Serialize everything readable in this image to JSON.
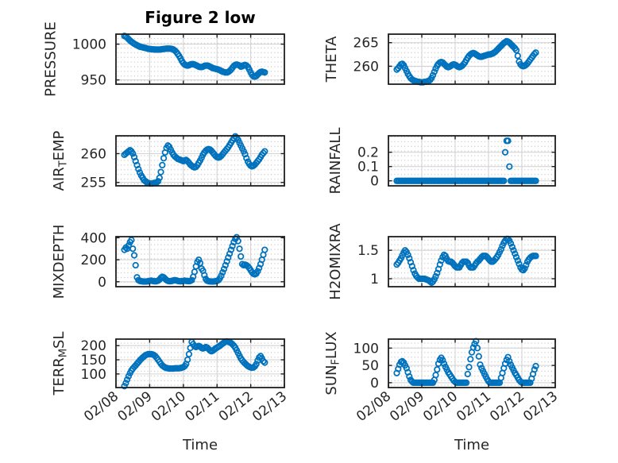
{
  "figure": {
    "title": "Figure 2 low",
    "xlabel": "Time",
    "background_color": "#ffffff",
    "marker_color": "#0072BD",
    "axis_color": "#1f1f1f",
    "text_color": "#262626",
    "grid_major_color": "#d4d4d4",
    "grid_minor_dot_color": "#c3c3c3",
    "grid_rows": 4,
    "grid_cols": 2
  },
  "x_axis": {
    "label": "Time",
    "tick_labels": [
      "02/08",
      "02/09",
      "02/10",
      "02/11",
      "02/12",
      "02/13"
    ],
    "span_hours": 120
  },
  "chart_data": [
    {
      "key": "pressure",
      "type": "scatter",
      "marker": "circle",
      "ylabel": "PRESSURE",
      "ylabel_parts": [
        {
          "t": "PRESSURE"
        }
      ],
      "yticks": [
        950,
        1000
      ],
      "ylim": [
        944,
        1014
      ],
      "x_start_hour": 6,
      "x_step_hours": 1,
      "values": [
        1011.5,
        1010.5,
        1009,
        1007,
        1005,
        1003.5,
        1002,
        1000.5,
        999.5,
        998.5,
        997.5,
        996.5,
        996,
        995.5,
        995,
        994.5,
        994,
        993.5,
        993.2,
        993,
        992.8,
        992.6,
        992.5,
        992.4,
        992.4,
        992.5,
        992.7,
        993,
        993.2,
        993.5,
        993.7,
        993.8,
        993.8,
        993.6,
        993.2,
        992.5,
        991,
        989,
        986.5,
        983.5,
        980,
        976.5,
        973.5,
        971.5,
        970.5,
        970,
        970.5,
        971.5,
        972,
        972,
        971.5,
        970.5,
        969.5,
        968.5,
        968,
        968,
        968.5,
        969.5,
        970,
        970,
        969.5,
        968.5,
        967.5,
        966.5,
        966,
        965.5,
        965,
        964.5,
        963.5,
        962.5,
        961.5,
        961,
        960.5,
        960.5,
        961,
        962.5,
        964.5,
        967,
        969.5,
        971,
        971.5,
        971,
        970,
        968.5,
        969,
        970.5,
        971,
        970,
        968,
        964.5,
        960.5,
        957,
        955,
        954.5,
        955.5,
        957.5,
        959.5,
        961,
        961.5,
        961,
        960.5
      ]
    },
    {
      "key": "theta",
      "type": "scatter",
      "marker": "circle",
      "ylabel": "THETA",
      "ylabel_parts": [
        {
          "t": "THETA"
        }
      ],
      "yticks": [
        260,
        265
      ],
      "ylim": [
        256.2,
        266.8
      ],
      "x_start_hour": 6,
      "x_step_hours": 1,
      "values": [
        259.3,
        259.6,
        260,
        260.4,
        260.5,
        260.2,
        259.6,
        259,
        258.4,
        257.9,
        257.5,
        257.2,
        257,
        256.9,
        256.8,
        256.7,
        256.7,
        256.6,
        256.6,
        256.6,
        256.7,
        256.7,
        256.8,
        256.9,
        257.1,
        257.5,
        258.1,
        258.8,
        259.5,
        260.1,
        260.5,
        260.8,
        260.9,
        260.8,
        260.5,
        260.2,
        259.9,
        259.8,
        259.9,
        260.1,
        260.3,
        260.4,
        260.3,
        260.1,
        259.9,
        259.8,
        259.9,
        260.1,
        260.4,
        260.8,
        261.3,
        261.8,
        262.2,
        262.5,
        262.7,
        262.8,
        262.7,
        262.5,
        262.3,
        262.1,
        262,
        262,
        262.1,
        262.2,
        262.3,
        262.4,
        262.5,
        262.5,
        262.6,
        262.7,
        262.9,
        263.1,
        263.4,
        263.7,
        264,
        264.3,
        264.6,
        264.9,
        265.1,
        265.3,
        265.2,
        265,
        264.7,
        264.4,
        264.1,
        263.8,
        263.4,
        262.2,
        261,
        260.4,
        260.1,
        260,
        260.1,
        260.3,
        260.6,
        261,
        261.4,
        261.8,
        262.2,
        262.6,
        262.9
      ]
    },
    {
      "key": "airtemp",
      "type": "scatter",
      "marker": "circle",
      "ylabel": "AIR_TEMP",
      "ylabel_parts": [
        {
          "t": "AIR"
        },
        {
          "t": "T",
          "sub": true
        },
        {
          "t": "EMP"
        }
      ],
      "yticks": [
        255,
        260
      ],
      "ylim": [
        254.4,
        263.1
      ],
      "x_start_hour": 6,
      "x_step_hours": 1,
      "values": [
        259.8,
        260,
        260.2,
        260.4,
        260.6,
        260.4,
        260,
        259.4,
        258.7,
        258,
        257.3,
        256.7,
        256.2,
        255.8,
        255.4,
        255.2,
        255,
        254.9,
        254.8,
        254.8,
        254.8,
        254.9,
        254.9,
        255,
        255.2,
        255.8,
        256.8,
        258,
        259.2,
        260.2,
        261,
        261.4,
        261.2,
        260.7,
        260.2,
        259.8,
        259.5,
        259.3,
        259.1,
        259,
        258.9,
        258.8,
        258.7,
        258.8,
        258.9,
        258.7,
        258.4,
        258.1,
        257.9,
        257.7,
        257.6,
        257.7,
        258,
        258.4,
        258.8,
        259.3,
        259.8,
        260.2,
        260.5,
        260.7,
        260.8,
        260.7,
        260.5,
        260.2,
        259.9,
        259.6,
        259.4,
        259.3,
        259.4,
        259.6,
        259.9,
        260.2,
        260.5,
        260.8,
        261.1,
        261.5,
        261.9,
        262.3,
        262.7,
        263,
        262.8,
        262.4,
        261.9,
        261.4,
        260.9,
        260.4,
        259.9,
        259.2,
        258.6,
        258.2,
        257.9,
        257.8,
        257.9,
        258.1,
        258.4,
        258.7,
        259,
        259.4,
        259.8,
        260.1,
        260.4
      ]
    },
    {
      "key": "rainfall",
      "type": "scatter",
      "marker": "circle",
      "ylabel": "RAINFALL",
      "ylabel_parts": [
        {
          "t": "RAINFALL"
        }
      ],
      "yticks": [
        0,
        0.1,
        0.2
      ],
      "ylim": [
        -0.035,
        0.315
      ],
      "x_start_hour": 6,
      "x_step_hours": 1,
      "values": [
        0,
        0,
        0,
        0,
        0,
        0,
        0,
        0,
        0,
        0,
        0,
        0,
        0,
        0,
        0,
        0,
        0,
        0,
        0,
        0,
        0,
        0,
        0,
        0,
        0,
        0,
        0,
        0,
        0,
        0,
        0,
        0,
        0,
        0,
        0,
        0,
        0,
        0,
        0,
        0,
        0,
        0,
        0,
        0,
        0,
        0,
        0,
        0,
        0,
        0,
        0,
        0,
        0,
        0,
        0,
        0,
        0,
        0,
        0,
        0,
        0,
        0,
        0,
        0,
        0,
        0,
        0,
        0,
        0,
        0,
        0,
        0,
        0,
        0,
        0,
        0,
        0,
        0,
        0.2,
        0.28,
        0.28,
        0.1,
        0,
        0,
        0,
        0,
        0,
        0,
        0,
        0,
        0,
        0,
        0,
        0,
        0,
        0,
        0,
        0,
        0,
        0,
        0
      ]
    },
    {
      "key": "mixdepth",
      "type": "scatter",
      "marker": "circle",
      "ylabel": "MIXDEPTH",
      "ylabel_parts": [
        {
          "t": "MIXDEPTH"
        }
      ],
      "yticks": [
        0,
        200,
        400
      ],
      "ylim": [
        -45,
        410
      ],
      "x_start_hour": 6,
      "x_step_hours": 1,
      "values": [
        290,
        310,
        300,
        330,
        360,
        380,
        300,
        240,
        150,
        40,
        15,
        8,
        5,
        3,
        2,
        2,
        3,
        5,
        8,
        10,
        8,
        5,
        4,
        5,
        10,
        20,
        35,
        45,
        40,
        28,
        15,
        8,
        5,
        5,
        8,
        12,
        15,
        12,
        8,
        5,
        4,
        5,
        8,
        10,
        8,
        6,
        5,
        8,
        15,
        45,
        90,
        140,
        180,
        200,
        170,
        120,
        100,
        60,
        25,
        10,
        5,
        3,
        2,
        2,
        3,
        5,
        8,
        15,
        30,
        55,
        85,
        115,
        150,
        185,
        220,
        255,
        290,
        325,
        360,
        390,
        405,
        370,
        300,
        230,
        160,
        150,
        155,
        150,
        140,
        125,
        105,
        85,
        72,
        68,
        75,
        95,
        125,
        160,
        200,
        245,
        290
      ]
    },
    {
      "key": "h2omixra",
      "type": "scatter",
      "marker": "circle",
      "ylabel": "H2OMIXRA",
      "ylabel_parts": [
        {
          "t": "H2OMIXRA"
        }
      ],
      "yticks": [
        1,
        1.5
      ],
      "ylim": [
        0.86,
        1.74
      ],
      "x_start_hour": 6,
      "x_step_hours": 1,
      "values": [
        1.25,
        1.28,
        1.32,
        1.36,
        1.41,
        1.46,
        1.5,
        1.47,
        1.42,
        1.36,
        1.29,
        1.22,
        1.15,
        1.09,
        1.05,
        1.02,
        1,
        1,
        1,
        1,
        1,
        0.99,
        0.98,
        0.97,
        0.95,
        0.93,
        0.95,
        0.99,
        1.04,
        1.1,
        1.17,
        1.25,
        1.32,
        1.38,
        1.42,
        1.4,
        1.35,
        1.31,
        1.3,
        1.3,
        1.28,
        1.25,
        1.22,
        1.2,
        1.2,
        1.2,
        1.24,
        1.28,
        1.3,
        1.3,
        1.3,
        1.28,
        1.23,
        1.2,
        1.2,
        1.2,
        1.23,
        1.27,
        1.3,
        1.32,
        1.35,
        1.38,
        1.4,
        1.4,
        1.4,
        1.38,
        1.35,
        1.32,
        1.3,
        1.3,
        1.32,
        1.35,
        1.38,
        1.42,
        1.47,
        1.52,
        1.58,
        1.63,
        1.67,
        1.7,
        1.7,
        1.67,
        1.62,
        1.56,
        1.5,
        1.44,
        1.38,
        1.32,
        1.26,
        1.2,
        1.16,
        1.15,
        1.18,
        1.24,
        1.3,
        1.34,
        1.37,
        1.39,
        1.4,
        1.4,
        1.4
      ]
    },
    {
      "key": "terrmsl",
      "type": "scatter",
      "marker": "circle",
      "ylabel": "TERR_MSL",
      "ylabel_parts": [
        {
          "t": "TERR"
        },
        {
          "t": "M",
          "sub": true
        },
        {
          "t": "SL"
        }
      ],
      "yticks": [
        100,
        150,
        200
      ],
      "ylim": [
        52,
        223
      ],
      "x_start_hour": 6,
      "x_step_hours": 1,
      "values": [
        57,
        68,
        80,
        92,
        103,
        112,
        119,
        125,
        130,
        136,
        142,
        148,
        153,
        158,
        162,
        166,
        168,
        170,
        170,
        170,
        169,
        167,
        163,
        157,
        150,
        143,
        136,
        130,
        126,
        123,
        121,
        120,
        119,
        119,
        119,
        119,
        120,
        120,
        120,
        120,
        121,
        122,
        124,
        128,
        135,
        150,
        170,
        192,
        213,
        205,
        198,
        195,
        197,
        199,
        196,
        192,
        190,
        192,
        195,
        193,
        188,
        183,
        180,
        182,
        186,
        190,
        193,
        196,
        199,
        203,
        207,
        211,
        214,
        215,
        214,
        212,
        209,
        205,
        200,
        193,
        184,
        174,
        164,
        155,
        148,
        142,
        137,
        132,
        128,
        125,
        123,
        122,
        123,
        127,
        135,
        147,
        158,
        163,
        155,
        145,
        140
      ]
    },
    {
      "key": "sunflux",
      "type": "scatter",
      "marker": "circle",
      "ylabel": "SUN_FLUX",
      "ylabel_parts": [
        {
          "t": "SUN"
        },
        {
          "t": "F",
          "sub": true
        },
        {
          "t": "LUX"
        }
      ],
      "yticks": [
        0,
        50,
        100
      ],
      "ylim": [
        -14,
        126
      ],
      "x_start_hour": 6,
      "x_step_hours": 1,
      "values": [
        28,
        40,
        52,
        60,
        62,
        58,
        50,
        42,
        30,
        18,
        8,
        3,
        0,
        0,
        0,
        0,
        0,
        0,
        0,
        0,
        0,
        0,
        0,
        0,
        0,
        0,
        0,
        8,
        22,
        38,
        55,
        66,
        72,
        65,
        55,
        46,
        38,
        30,
        24,
        18,
        12,
        6,
        2,
        0,
        0,
        0,
        0,
        0,
        0,
        0,
        0,
        25,
        45,
        68,
        88,
        102,
        112,
        120,
        100,
        76,
        52,
        42,
        34,
        26,
        18,
        10,
        4,
        0,
        0,
        0,
        0,
        0,
        0,
        0,
        0,
        14,
        28,
        42,
        55,
        66,
        74,
        62,
        52,
        44,
        36,
        28,
        22,
        15,
        8,
        3,
        0,
        0,
        0,
        0,
        0,
        0,
        0,
        12,
        25,
        38,
        48
      ]
    }
  ]
}
